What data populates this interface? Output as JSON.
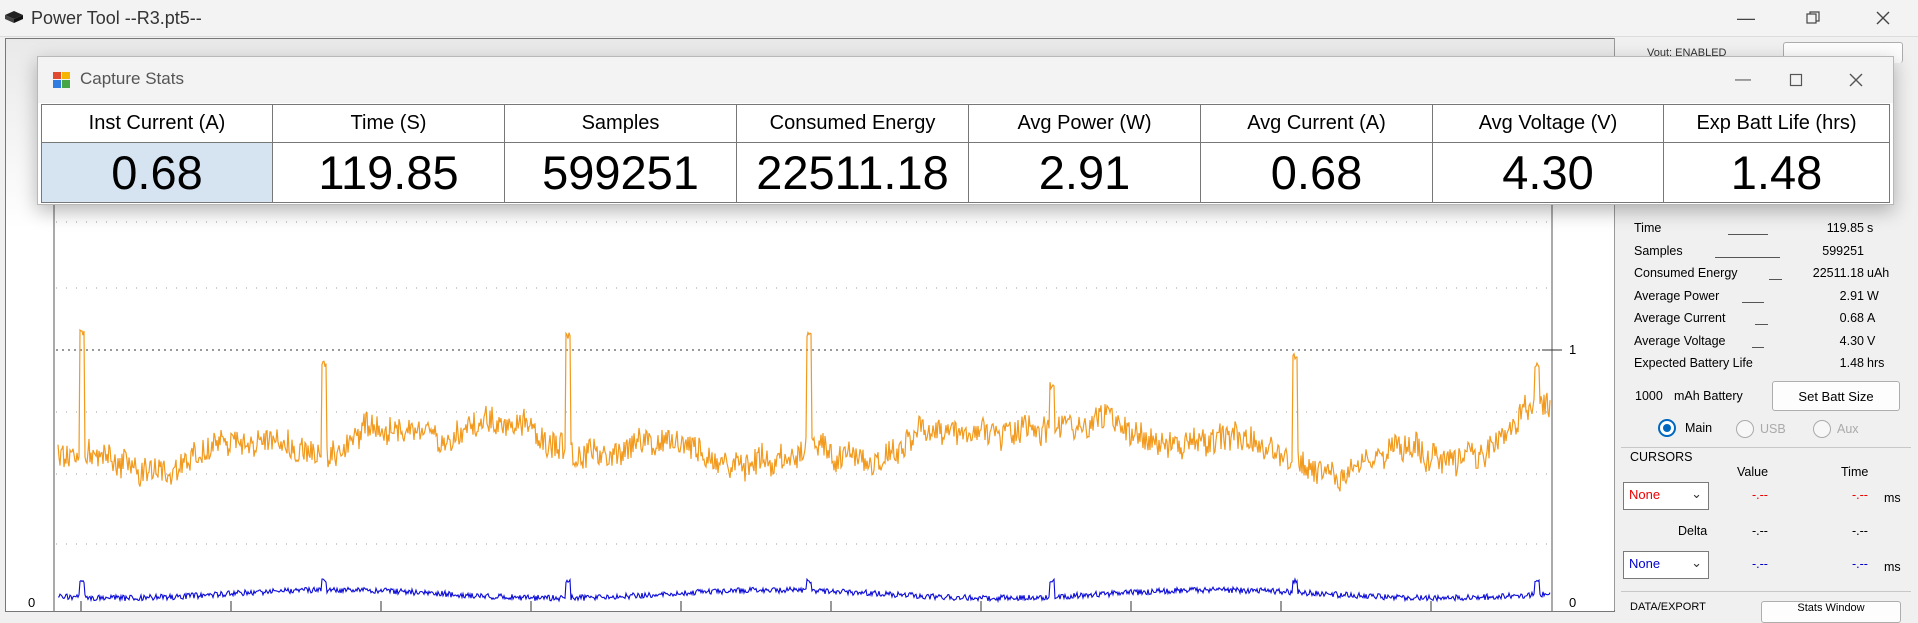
{
  "window": {
    "title": "Power Tool --R3.pt5--",
    "controls": [
      "minimize",
      "restore",
      "close"
    ]
  },
  "plot": {
    "y_tick_left": "0",
    "y_tick_right_1": "1",
    "y_tick_right_0": "0",
    "series_colors": {
      "current": "#f29a1e",
      "voltage": "#0b0bd6"
    }
  },
  "dialog": {
    "title": "Capture Stats",
    "columns": [
      {
        "header": "Inst Current (A)",
        "value": "0.68",
        "selected": true
      },
      {
        "header": "Time (S)",
        "value": "119.85"
      },
      {
        "header": "Samples",
        "value": "599251"
      },
      {
        "header": "Consumed Energy",
        "value": "22511.18"
      },
      {
        "header": "Avg Power (W)",
        "value": "2.91"
      },
      {
        "header": "Avg Current (A)",
        "value": "0.68"
      },
      {
        "header": "Avg Voltage (V)",
        "value": "4.30"
      },
      {
        "header": "Exp Batt Life (hrs)",
        "value": "1.48"
      }
    ]
  },
  "right_panel": {
    "top_partial": "Vout: ENABLED",
    "stats": [
      {
        "label": "Time",
        "value": "119.85",
        "unit": "s"
      },
      {
        "label": "Samples",
        "value": "599251",
        "unit": ""
      },
      {
        "label": "Consumed Energy",
        "value": "22511.18",
        "unit": "uAh"
      },
      {
        "label": "Average Power",
        "value": "2.91",
        "unit": "W"
      },
      {
        "label": "Average Current",
        "value": "0.68",
        "unit": "A"
      },
      {
        "label": "Average Voltage",
        "value": "4.30",
        "unit": "V"
      },
      {
        "label": "Expected Battery Life",
        "value": "1.48",
        "unit": "hrs"
      }
    ],
    "battery_size": "1000",
    "battery_unit": "mAh Battery",
    "set_batt_button": "Set Batt Size",
    "radios": [
      {
        "label": "Main",
        "selected": true
      },
      {
        "label": "USB",
        "selected": false
      },
      {
        "label": "Aux",
        "selected": false
      }
    ],
    "cursors": {
      "title": "CURSORS",
      "value_header": "Value",
      "time_header": "Time",
      "cursor1_select": "None",
      "cursor1_value": "-.--",
      "cursor1_time": "-.--",
      "cursor1_unit": "ms",
      "delta_label": "Delta",
      "delta_value": "-.--",
      "delta_time": "-.--",
      "cursor2_select": "None",
      "cursor2_value": "-.--",
      "cursor2_time": "-.--",
      "cursor2_unit": "ms"
    },
    "bottom_partial_label": "DATA/EXPORT",
    "bottom_partial_button": "Stats Window"
  }
}
